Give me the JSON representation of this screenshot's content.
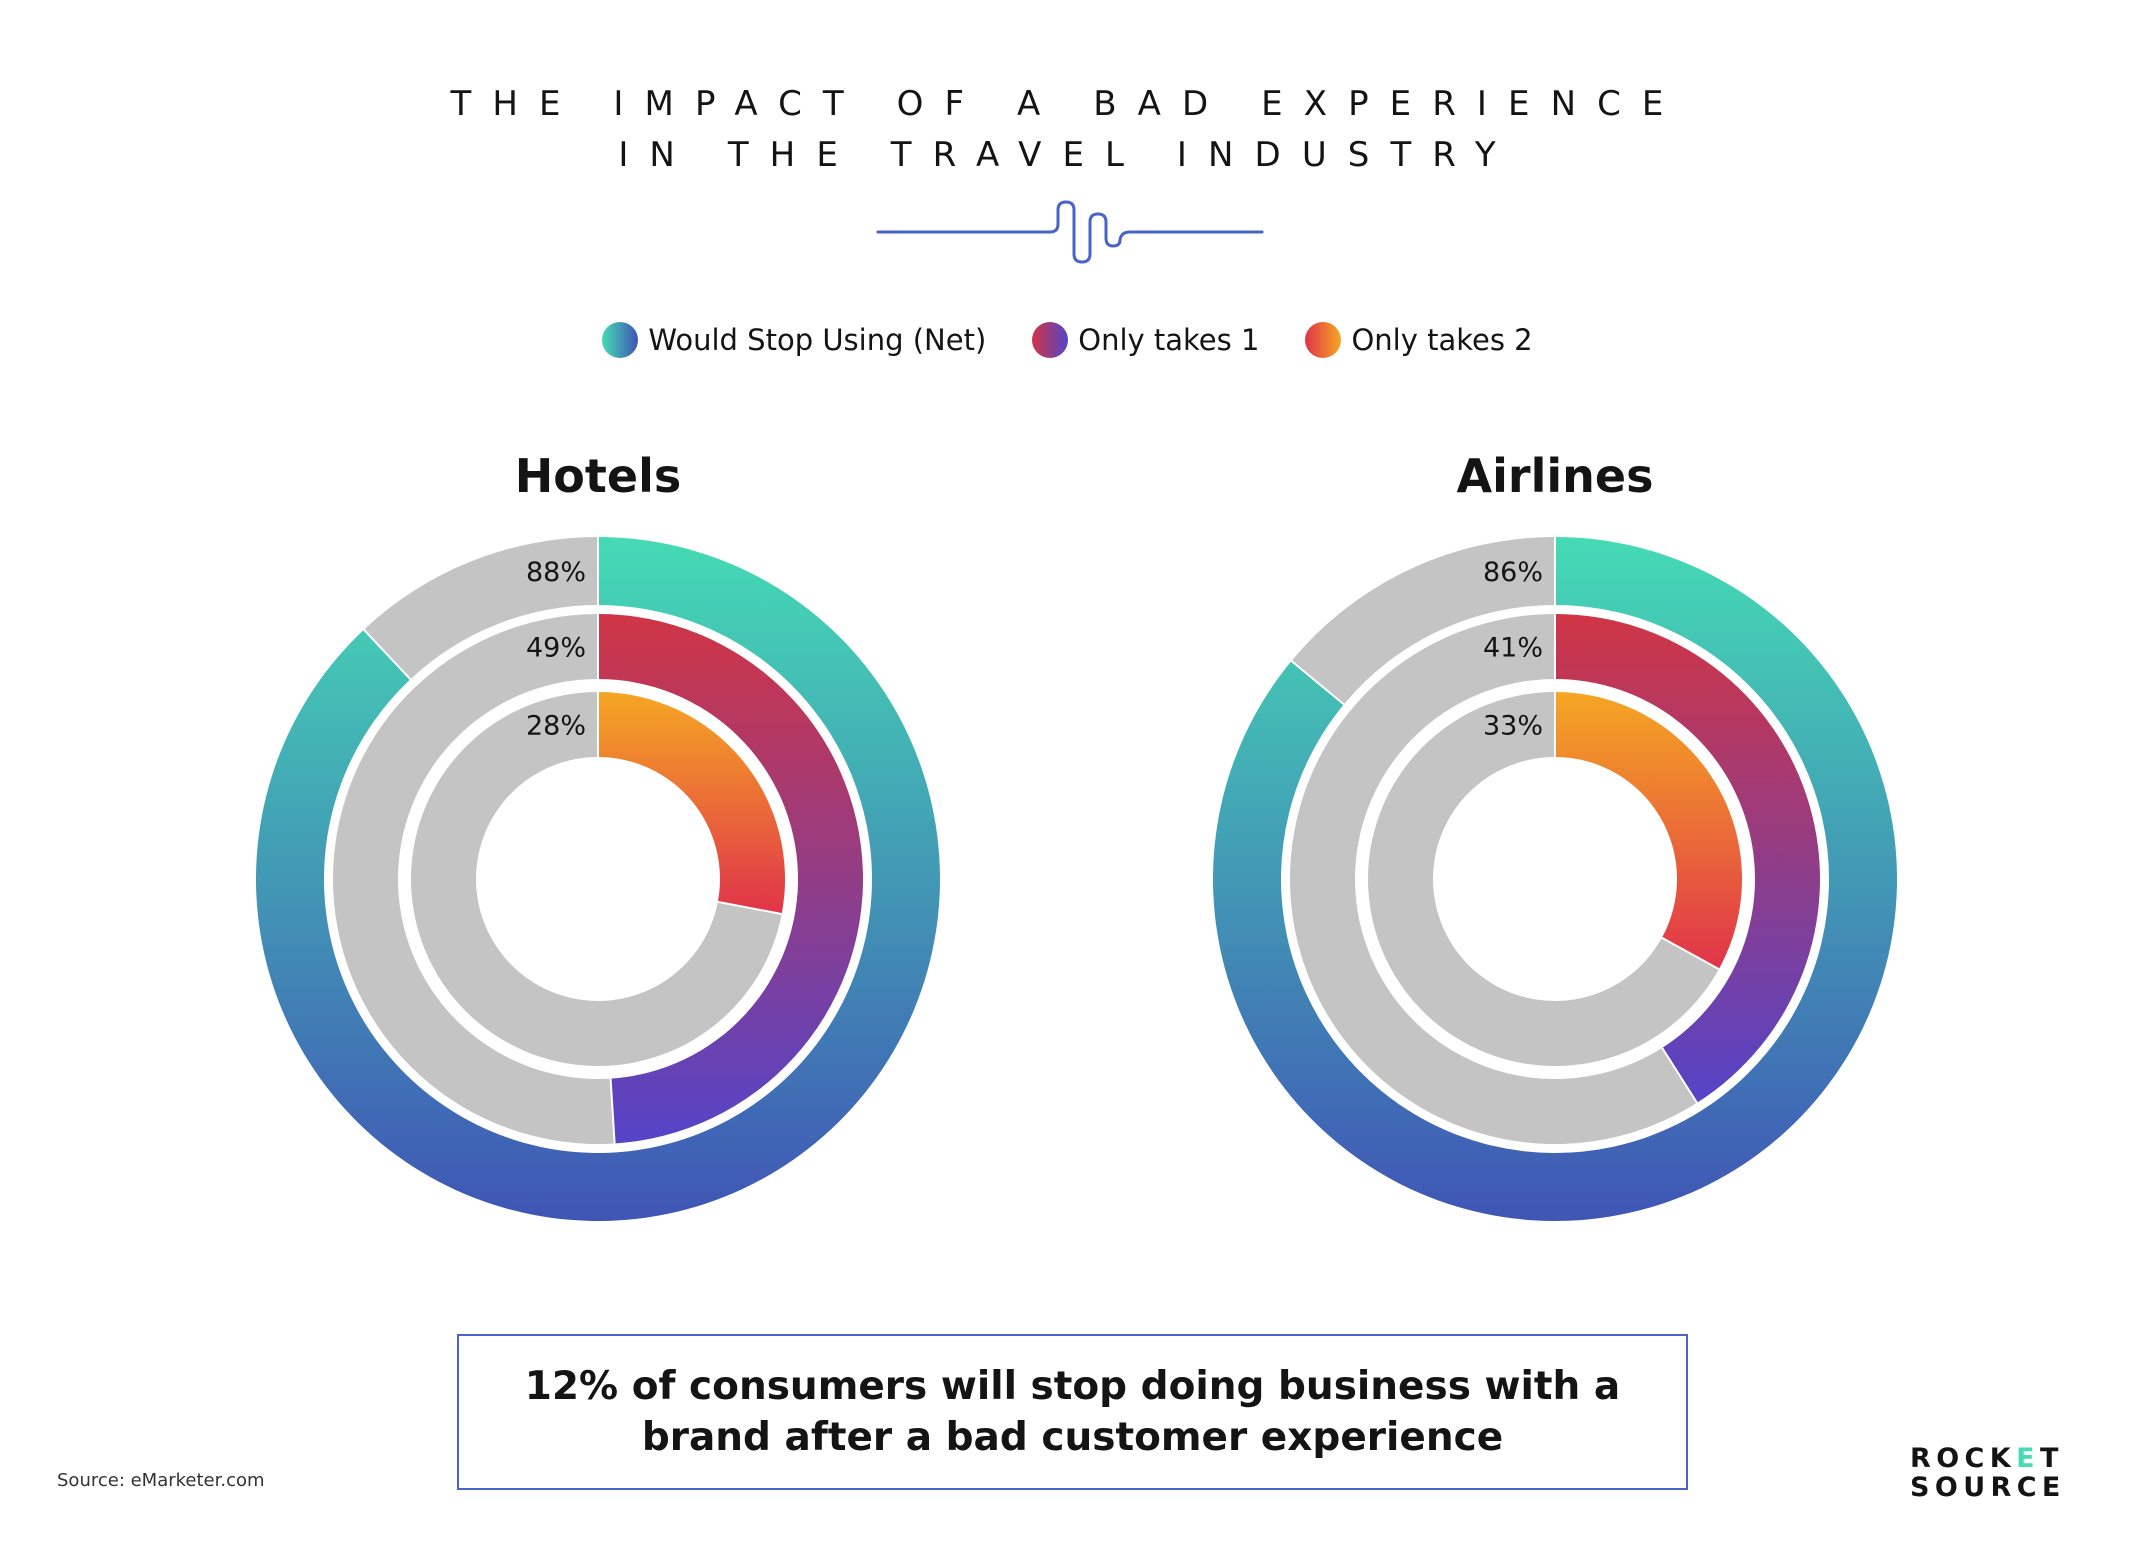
{
  "title_line1": "THE IMPACT OF A BAD EXPERIENCE",
  "title_line2": "IN THE TRAVEL INDUSTRY",
  "legend": [
    {
      "label": "Would Stop Using (Net)",
      "color_start": "#45dbb5",
      "color_end": "#3f55b5"
    },
    {
      "label": "Only takes 1",
      "color_start": "#d03545",
      "color_end": "#5444c8"
    },
    {
      "label": "Only takes 2",
      "color_start": "#e0344a",
      "color_end": "#f5a623"
    }
  ],
  "chart_data": [
    {
      "type": "pie",
      "title": "Hotels",
      "series": [
        {
          "name": "Would Stop Using (Net)",
          "value": 88,
          "label": "88%"
        },
        {
          "name": "Only takes 1",
          "value": 49,
          "label": "49%"
        },
        {
          "name": "Only takes 2",
          "value": 28,
          "label": "28%"
        }
      ]
    },
    {
      "type": "pie",
      "title": "Airlines",
      "series": [
        {
          "name": "Would Stop Using (Net)",
          "value": 86,
          "label": "86%"
        },
        {
          "name": "Only takes 1",
          "value": 41,
          "label": "41%"
        },
        {
          "name": "Only takes 2",
          "value": 33,
          "label": "33%"
        }
      ]
    }
  ],
  "callout": "12% of consumers will stop doing business with a brand after a bad customer experience",
  "source": "Source: eMarketer.com",
  "logo": {
    "line1_a": "ROCK",
    "line1_e": "E",
    "line1_b": "T",
    "line2": "SOURCE"
  },
  "colors": {
    "track": "#c4c4c4",
    "accent": "#4a64c4"
  }
}
